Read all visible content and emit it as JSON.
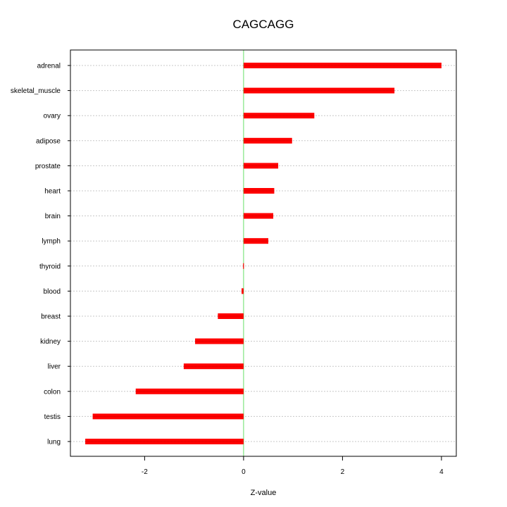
{
  "chart_data": {
    "type": "bar",
    "orientation": "horizontal",
    "title": "CAGCAGG",
    "xlabel": "Z-value",
    "ylabel": "",
    "categories": [
      "adrenal",
      "skeletal_muscle",
      "ovary",
      "adipose",
      "prostate",
      "heart",
      "brain",
      "lymph",
      "thyroid",
      "blood",
      "breast",
      "kidney",
      "liver",
      "colon",
      "testis",
      "lung"
    ],
    "values": [
      4.0,
      3.05,
      1.43,
      0.98,
      0.7,
      0.62,
      0.6,
      0.5,
      -0.01,
      -0.04,
      -0.52,
      -0.98,
      -1.21,
      -2.18,
      -3.05,
      -3.2
    ],
    "xlim": [
      -3.5,
      4.3
    ],
    "xticks": [
      -2,
      0,
      2,
      4
    ],
    "xtick_labels": [
      "-2",
      "0",
      "2",
      "4"
    ],
    "grid": "horizontal dotted",
    "reference_line": 0,
    "colors": {
      "bar": "#ff0000",
      "bar_core": "#c80000",
      "reference_line": "#7fe57f",
      "grid": "#c8c8c8",
      "axis": "#000000"
    }
  }
}
